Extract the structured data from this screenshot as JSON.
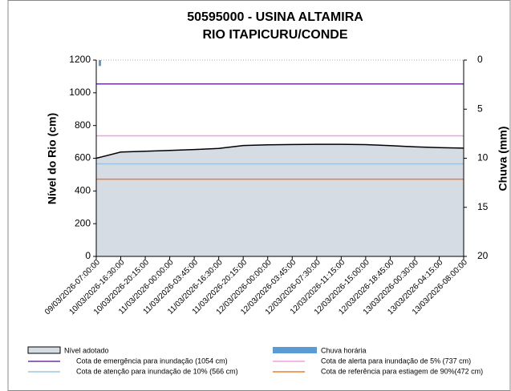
{
  "chart_data": {
    "type": "area",
    "title": [
      "50595000 - USINA ALTAMIRA",
      "RIO ITAPICURU/CONDE"
    ],
    "ylabel": "Nível do Rio (cm)",
    "y2label": "Chuva (mm)",
    "categories": [
      "09/03/2026-07:00:00",
      "10/03/2026-16:30:00",
      "10/03/2026-20:15:00",
      "11/03/2026-00:00:00",
      "11/03/2026-03:45:00",
      "11/03/2026-16:30:00",
      "11/03/2026-20:15:00",
      "12/03/2026-00:00:00",
      "12/03/2026-03:45:00",
      "12/03/2026-07:30:00",
      "12/03/2026-11:15:00",
      "12/03/2026-15:00:00",
      "12/03/2026-18:45:00",
      "13/03/2026-00:30:00",
      "13/03/2026-04:15:00",
      "13/03/2026-08:00:00"
    ],
    "series": [
      {
        "name": "Nível adotado",
        "color": "#d6dce4",
        "values": [
          600,
          638,
          643,
          648,
          653,
          660,
          678,
          682,
          684,
          685,
          685,
          683,
          677,
          670,
          665,
          662
        ]
      },
      {
        "name": "Chuva horária",
        "color": "#5b9bd5",
        "axis": "y2",
        "values": [
          0.6,
          0,
          0,
          0,
          0,
          0,
          0,
          0,
          0,
          0,
          0,
          0,
          0,
          0,
          0,
          0
        ]
      }
    ],
    "thresholds": [
      {
        "name": "Cota de emergência para inundação (1054 cm)",
        "color": "#7030a0",
        "value": 1054
      },
      {
        "name": "Cota de alerta para inundação de 5% (737 cm)",
        "color": "#f29ee6",
        "value": 737
      },
      {
        "name": "Cota de atenção para inundação de 10% (566 cm)",
        "color": "#9dc3e6",
        "value": 566
      },
      {
        "name": "Cota de referência para estiagem de 90%(472 cm)",
        "color": "#ed7d31",
        "value": 472
      }
    ],
    "ylim": [
      0,
      1200
    ],
    "yticks": [
      0,
      200,
      400,
      600,
      800,
      1000,
      1200
    ],
    "y2lim": [
      20,
      0
    ],
    "y2ticks": [
      0,
      5,
      10,
      15,
      20
    ]
  }
}
